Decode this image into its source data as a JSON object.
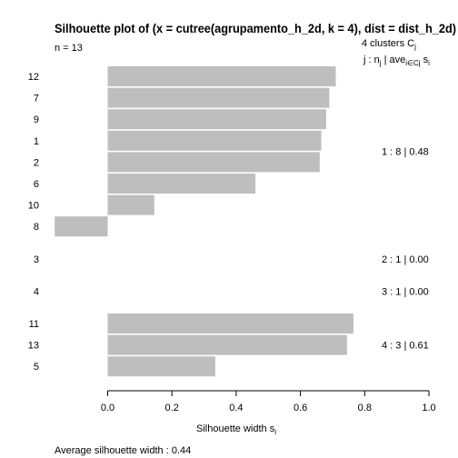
{
  "chart_data": {
    "type": "bar",
    "orientation": "horizontal",
    "title": "Silhouette plot of (x = cutree(agrupamento_h_2d, k = 4), dist = dist_h_2d)",
    "n_label": "n = 13",
    "legend_header_clusters": "4  clusters  C",
    "legend_header_clusters_sub": "j",
    "legend_header_stats": "j :  n",
    "legend_header_stats_mid": " | ave",
    "legend_header_stats_sub2": "i∈Cj",
    "legend_header_stats_end": " s",
    "legend_header_stats_sub3": "i",
    "xlabel": "Silhouette width s",
    "xlabel_sub": "i",
    "xlim": [
      -0.2,
      1.0
    ],
    "xticks": [
      "0.0",
      "0.2",
      "0.4",
      "0.6",
      "0.8",
      "1.0"
    ],
    "footer": "Average silhouette width :  0.44",
    "bar_color": "#bebebe",
    "observations": [
      {
        "label": "12",
        "cluster": 1,
        "value": 0.71
      },
      {
        "label": "7",
        "cluster": 1,
        "value": 0.69
      },
      {
        "label": "9",
        "cluster": 1,
        "value": 0.68
      },
      {
        "label": "1",
        "cluster": 1,
        "value": 0.665
      },
      {
        "label": "2",
        "cluster": 1,
        "value": 0.66
      },
      {
        "label": "6",
        "cluster": 1,
        "value": 0.46
      },
      {
        "label": "10",
        "cluster": 1,
        "value": 0.145
      },
      {
        "label": "8",
        "cluster": 1,
        "value": -0.165
      },
      {
        "label": "3",
        "cluster": 2,
        "value": 0.0
      },
      {
        "label": "4",
        "cluster": 3,
        "value": 0.0
      },
      {
        "label": "11",
        "cluster": 4,
        "value": 0.765
      },
      {
        "label": "13",
        "cluster": 4,
        "value": 0.745
      },
      {
        "label": "5",
        "cluster": 4,
        "value": 0.335
      }
    ],
    "clusters": [
      {
        "id": 1,
        "n": 8,
        "avg": "0.48",
        "summary": "1 :  8  |  0.48"
      },
      {
        "id": 2,
        "n": 1,
        "avg": "0.00",
        "summary": "2 :  1  |  0.00"
      },
      {
        "id": 3,
        "n": 1,
        "avg": "0.00",
        "summary": "3 :  1  |  0.00"
      },
      {
        "id": 4,
        "n": 3,
        "avg": "0.61",
        "summary": "4 :  3  |  0.61"
      }
    ]
  }
}
